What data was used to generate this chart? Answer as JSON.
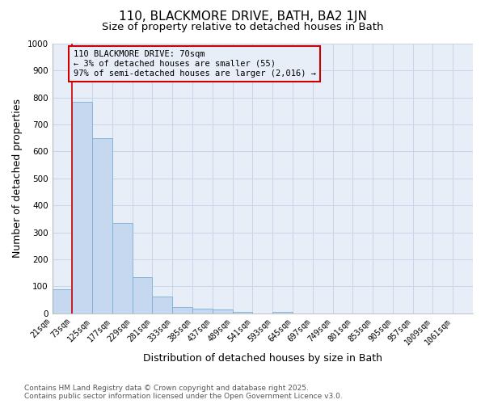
{
  "title_line1": "110, BLACKMORE DRIVE, BATH, BA2 1JN",
  "title_line2": "Size of property relative to detached houses in Bath",
  "xlabel": "Distribution of detached houses by size in Bath",
  "ylabel": "Number of detached properties",
  "categories": [
    "21sqm",
    "73sqm",
    "125sqm",
    "177sqm",
    "229sqm",
    "281sqm",
    "333sqm",
    "385sqm",
    "437sqm",
    "489sqm",
    "541sqm",
    "593sqm",
    "645sqm",
    "697sqm",
    "749sqm",
    "801sqm",
    "853sqm",
    "905sqm",
    "957sqm",
    "1009sqm",
    "1061sqm"
  ],
  "bar_heights": [
    88,
    785,
    648,
    335,
    135,
    62,
    24,
    17,
    14,
    5,
    0,
    4,
    0,
    0,
    0,
    0,
    0,
    0,
    0,
    0,
    0
  ],
  "bar_color": "#c5d8f0",
  "bar_edge_color": "#7bafd4",
  "grid_color": "#c8d4e8",
  "plot_bg_color": "#e8eef8",
  "fig_bg_color": "#ffffff",
  "annotation_box_text": "110 BLACKMORE DRIVE: 70sqm\n← 3% of detached houses are smaller (55)\n97% of semi-detached houses are larger (2,016) →",
  "annotation_box_color": "#cc0000",
  "vline_x": 1.0,
  "vline_color": "#cc0000",
  "ylim": [
    0,
    1000
  ],
  "yticks": [
    0,
    100,
    200,
    300,
    400,
    500,
    600,
    700,
    800,
    900,
    1000
  ],
  "footer_text": "Contains HM Land Registry data © Crown copyright and database right 2025.\nContains public sector information licensed under the Open Government Licence v3.0.",
  "title_fontsize": 11,
  "subtitle_fontsize": 9.5,
  "axis_label_fontsize": 9,
  "tick_fontsize": 7,
  "annotation_fontsize": 7.5,
  "footer_fontsize": 6.5
}
